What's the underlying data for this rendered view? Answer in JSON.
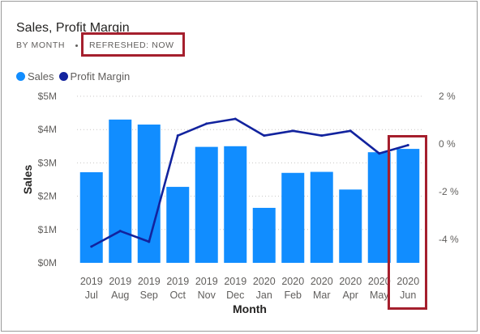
{
  "header": {
    "title": "Sales, Profit Margin",
    "subtitle": "BY MONTH",
    "refreshed": "REFRESHED: NOW"
  },
  "colors": {
    "sales": "#118dff",
    "profit_margin": "#12239e",
    "highlight": "#a51f2d"
  },
  "chart_data": {
    "type": "bar",
    "combo": "bar + line (secondary axis)",
    "title": "Sales, Profit Margin",
    "xlabel": "Month",
    "ylabel": "Sales",
    "legend": [
      "Sales",
      "Profit Margin"
    ],
    "legend_position": "top-left",
    "categories": [
      {
        "year": "2019",
        "month": "Jul"
      },
      {
        "year": "2019",
        "month": "Aug"
      },
      {
        "year": "2019",
        "month": "Sep"
      },
      {
        "year": "2019",
        "month": "Oct"
      },
      {
        "year": "2019",
        "month": "Nov"
      },
      {
        "year": "2019",
        "month": "Dec"
      },
      {
        "year": "2020",
        "month": "Jan"
      },
      {
        "year": "2020",
        "month": "Feb"
      },
      {
        "year": "2020",
        "month": "Mar"
      },
      {
        "year": "2020",
        "month": "Apr"
      },
      {
        "year": "2020",
        "month": "May"
      },
      {
        "year": "2020",
        "month": "Jun"
      }
    ],
    "series": [
      {
        "name": "Sales",
        "axis": "left",
        "values": [
          2.72,
          4.3,
          4.15,
          2.28,
          3.48,
          3.5,
          1.65,
          2.7,
          2.73,
          2.2,
          3.32,
          3.42
        ]
      },
      {
        "name": "Profit Margin",
        "axis": "right",
        "values": [
          -4.3,
          -3.65,
          -4.1,
          0.35,
          0.85,
          1.05,
          0.35,
          0.55,
          0.35,
          0.55,
          -0.4,
          -0.05
        ]
      }
    ],
    "ylim": [
      0,
      5
    ],
    "y_ticks": [
      "$0M",
      "$1M",
      "$2M",
      "$3M",
      "$4M",
      "$5M"
    ],
    "y2lim": [
      -5.0,
      2.0
    ],
    "y2_ticks": [
      "-4 %",
      "-2 %",
      "0 %",
      "2 %"
    ],
    "grid": true,
    "highlight_index": 11
  }
}
